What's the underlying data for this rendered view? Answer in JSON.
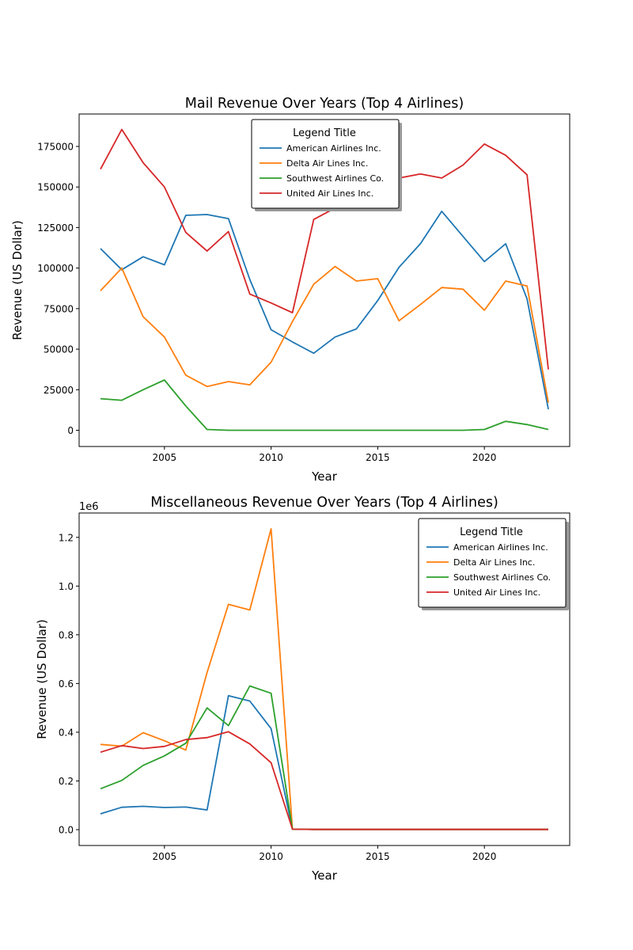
{
  "chart_data": [
    {
      "type": "line",
      "title": "Mail Revenue Over Years (Top 4 Airlines)",
      "xlabel": "Year",
      "ylabel": "Revenue (US Dollar)",
      "x": [
        2002,
        2003,
        2004,
        2005,
        2006,
        2007,
        2008,
        2009,
        2010,
        2011,
        2012,
        2013,
        2014,
        2015,
        2016,
        2017,
        2018,
        2019,
        2020,
        2021,
        2022,
        2023
      ],
      "xlim": [
        2001,
        2024
      ],
      "ylim": [
        -10000,
        195000
      ],
      "xticks": [
        2005,
        2010,
        2015,
        2020
      ],
      "yticks": [
        0,
        25000,
        50000,
        75000,
        100000,
        125000,
        150000,
        175000
      ],
      "ytick_labels": [
        "0",
        "25000",
        "50000",
        "75000",
        "100000",
        "125000",
        "150000",
        "175000"
      ],
      "offset_label": "",
      "grid": false,
      "legend": {
        "title": "Legend Title",
        "placement": "upper center"
      },
      "series": [
        {
          "name": "American Airlines Inc.",
          "color": "#1f77b4",
          "values": [
            112000,
            99000,
            107000,
            102000,
            132500,
            133000,
            130500,
            93000,
            62000,
            54500,
            47500,
            57500,
            62500,
            80000,
            100500,
            115000,
            135000,
            119500,
            104000,
            115000,
            81000,
            13000
          ]
        },
        {
          "name": "Delta Air Lines Inc.",
          "color": "#ff7f0e",
          "values": [
            86000,
            100000,
            70000,
            57500,
            34000,
            27000,
            30000,
            28000,
            42000,
            67000,
            90000,
            101000,
            92000,
            93500,
            67500,
            77500,
            88000,
            87000,
            74000,
            92000,
            89000,
            17000
          ]
        },
        {
          "name": "Southwest Airlines Co.",
          "color": "#2ca02c",
          "values": [
            19500,
            18500,
            25000,
            31000,
            15000,
            500,
            0,
            0,
            0,
            0,
            0,
            0,
            0,
            0,
            0,
            0,
            0,
            0,
            500,
            5500,
            3500,
            500
          ]
        },
        {
          "name": "United Air Lines Inc.",
          "color": "#d62728",
          "values": [
            161000,
            185500,
            165000,
            150000,
            122000,
            110500,
            122500,
            84000,
            78500,
            72500,
            130000,
            137000,
            145000,
            150000,
            155500,
            158000,
            155500,
            163500,
            176500,
            169500,
            157500,
            37500
          ]
        }
      ]
    },
    {
      "type": "line",
      "title": "Miscellaneous Revenue Over Years (Top 4 Airlines)",
      "xlabel": "Year",
      "ylabel": "Revenue (US Dollar)",
      "x": [
        2002,
        2003,
        2004,
        2005,
        2006,
        2007,
        2008,
        2009,
        2010,
        2011,
        2012,
        2013,
        2014,
        2015,
        2016,
        2017,
        2018,
        2019,
        2020,
        2021,
        2022,
        2023
      ],
      "xlim": [
        2001,
        2024
      ],
      "ylim": [
        -0.065,
        1.3
      ],
      "xticks": [
        2005,
        2010,
        2015,
        2020
      ],
      "yticks": [
        0.0,
        0.2,
        0.4,
        0.6,
        0.8,
        1.0,
        1.2
      ],
      "ytick_labels": [
        "0.0",
        "0.2",
        "0.4",
        "0.6",
        "0.8",
        "1.0",
        "1.2"
      ],
      "offset_label": "1e6",
      "grid": false,
      "legend": {
        "title": "Legend Title",
        "placement": "upper right"
      },
      "series": [
        {
          "name": "American Airlines Inc.",
          "color": "#1f77b4",
          "values": [
            0.065,
            0.092,
            0.096,
            0.091,
            0.093,
            0.081,
            0.55,
            0.528,
            0.415,
            0.002,
            0.001,
            0.001,
            0.001,
            0.001,
            0.001,
            0.001,
            0.001,
            0.001,
            0.001,
            0.001,
            0.001,
            0.001
          ]
        },
        {
          "name": "Delta Air Lines Inc.",
          "color": "#ff7f0e",
          "values": [
            0.35,
            0.343,
            0.398,
            0.365,
            0.327,
            0.645,
            0.925,
            0.902,
            1.235,
            0.002,
            0.001,
            0.001,
            0.001,
            0.001,
            0.001,
            0.001,
            0.001,
            0.001,
            0.001,
            0.001,
            0.001,
            0.001
          ]
        },
        {
          "name": "Southwest Airlines Co.",
          "color": "#2ca02c",
          "values": [
            0.168,
            0.202,
            0.264,
            0.303,
            0.355,
            0.5,
            0.427,
            0.59,
            0.56,
            0.002,
            0.001,
            0.001,
            0.001,
            0.001,
            0.001,
            0.001,
            0.001,
            0.001,
            0.001,
            0.001,
            0.001,
            0.001
          ]
        },
        {
          "name": "United Air Lines Inc.",
          "color": "#d62728",
          "values": [
            0.318,
            0.345,
            0.333,
            0.342,
            0.37,
            0.378,
            0.402,
            0.352,
            0.275,
            0.002,
            0.001,
            0.001,
            0.001,
            0.001,
            0.001,
            0.001,
            0.001,
            0.001,
            0.001,
            0.001,
            0.001,
            0.001
          ]
        }
      ]
    }
  ]
}
